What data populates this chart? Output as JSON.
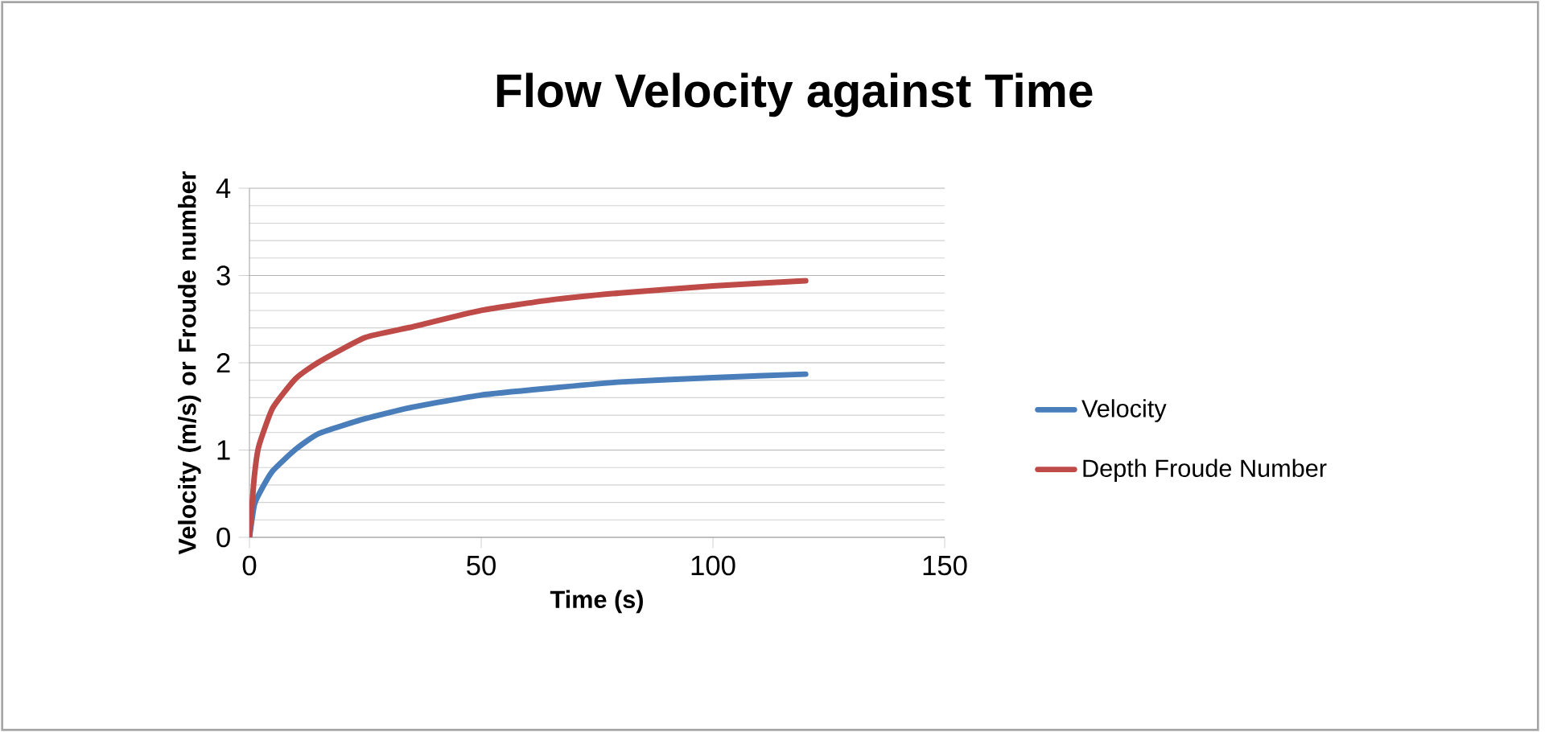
{
  "chart_data": {
    "type": "line",
    "title": "Flow Velocity against Time",
    "xlabel": "Time (s)",
    "ylabel": "Velocity (m/s) or Froude number",
    "x": [
      0,
      1,
      2,
      5,
      10,
      15,
      25,
      35,
      50,
      65,
      80,
      100,
      120
    ],
    "series": [
      {
        "name": "Velocity",
        "color": "#4a7ebb",
        "values": [
          0,
          0.36,
          0.49,
          0.76,
          1.01,
          1.19,
          1.36,
          1.49,
          1.63,
          1.71,
          1.78,
          1.83,
          1.87
        ]
      },
      {
        "name": "Depth Froude Number",
        "color": "#be4b48",
        "values": [
          0,
          0.67,
          1.04,
          1.48,
          1.82,
          2.01,
          2.29,
          2.41,
          2.6,
          2.72,
          2.8,
          2.88,
          2.94
        ]
      }
    ],
    "xlim": [
      0,
      150
    ],
    "xticks": [
      0,
      50,
      100,
      150
    ],
    "ylim": [
      0,
      4
    ],
    "yticks": [
      0,
      1,
      2,
      3,
      4
    ],
    "grid": "y",
    "legend": "right",
    "marker": "none",
    "line_style": "solid"
  }
}
